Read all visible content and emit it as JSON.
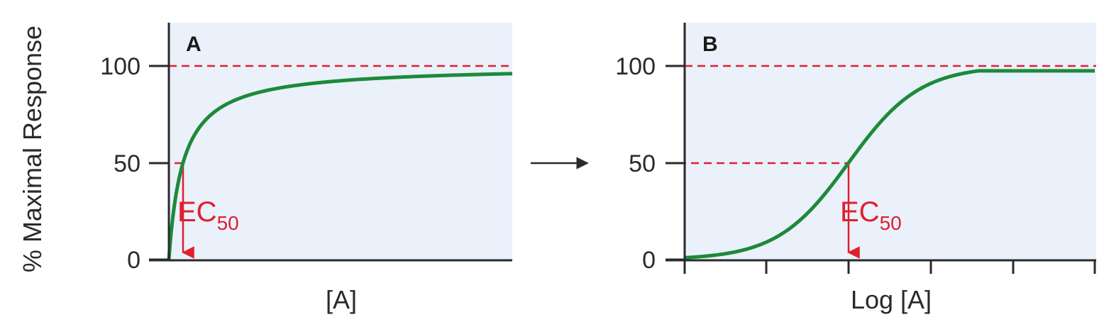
{
  "ylabel": "% Maximal Response",
  "colors": {
    "curve": "#1d8a3a",
    "reference": "#e0202e",
    "panel_bg": "#eaf1fb",
    "axis": "#2a2a2a"
  },
  "chart_data": [
    {
      "type": "line",
      "panel_label": "A",
      "xlabel": "[A]",
      "ylabel": "% Maximal Response",
      "ylim": [
        0,
        100
      ],
      "yticks": [
        "0",
        "50",
        "100"
      ],
      "x_scale": "linear",
      "series": [
        {
          "x": [
            0,
            0.5,
            1,
            1.5,
            2,
            3,
            4,
            6,
            8,
            10,
            14,
            20
          ],
          "y": [
            0,
            33.3,
            50,
            60,
            66.7,
            75,
            80,
            85.7,
            88.9,
            90.9,
            93.3,
            95.2
          ]
        }
      ],
      "reference_line": 100,
      "ec50": {
        "x": 1,
        "y": 50,
        "label": "EC",
        "sub": "50"
      }
    },
    {
      "type": "line",
      "panel_label": "B",
      "xlabel": "Log [A]",
      "ylabel": "% Maximal Response",
      "ylim": [
        0,
        100
      ],
      "yticks": [
        "0",
        "50",
        "100"
      ],
      "x_scale": "log",
      "series": [
        {
          "x": [
            0.01,
            0.03,
            0.1,
            0.3,
            1,
            3,
            10,
            30,
            100
          ],
          "y": [
            1,
            3,
            9,
            23,
            50,
            77,
            91,
            96,
            97
          ]
        }
      ],
      "reference_line": 100,
      "ec50": {
        "x": 1,
        "y": 50,
        "label": "EC",
        "sub": "50"
      }
    }
  ]
}
